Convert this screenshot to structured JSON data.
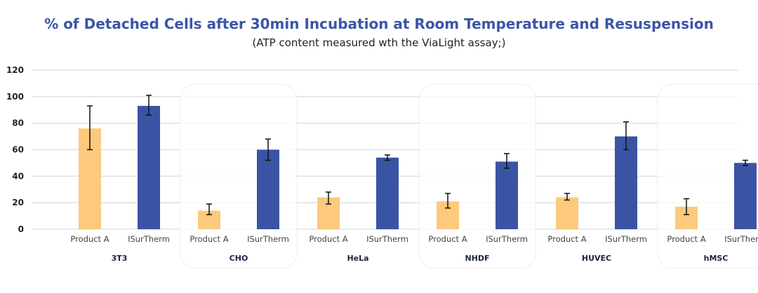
{
  "chart_data": {
    "type": "bar",
    "title": "% of Detached Cells after 30min Incubation at Room Temperature and Resuspension",
    "subtitle": "(ATP content measured wth the ViaLight assay;)",
    "xlabel": "",
    "ylabel": "",
    "ylim": [
      0,
      120
    ],
    "yticks": [
      "0",
      "20",
      "40",
      "60",
      "80",
      "100",
      "120"
    ],
    "grid": true,
    "series_names": [
      "Product A",
      "ISurTherm"
    ],
    "colors": {
      "Product A": "#fdc97c",
      "ISurTherm": "#3a54a4"
    },
    "groups": [
      {
        "name": "3T3",
        "highlight": false,
        "values": [
          76,
          93
        ],
        "error_low": [
          60,
          86
        ],
        "error_high": [
          93,
          101
        ]
      },
      {
        "name": "CHO",
        "highlight": true,
        "values": [
          14,
          60
        ],
        "error_low": [
          11,
          52
        ],
        "error_high": [
          19,
          68
        ]
      },
      {
        "name": "HeLa",
        "highlight": false,
        "values": [
          24,
          54
        ],
        "error_low": [
          19,
          52
        ],
        "error_high": [
          28,
          56
        ]
      },
      {
        "name": "NHDF",
        "highlight": true,
        "values": [
          21,
          51
        ],
        "error_low": [
          16,
          46
        ],
        "error_high": [
          27,
          57
        ]
      },
      {
        "name": "HUVEC",
        "highlight": false,
        "values": [
          24,
          70
        ],
        "error_low": [
          22,
          60
        ],
        "error_high": [
          27,
          81
        ]
      },
      {
        "name": "hMSC",
        "highlight": true,
        "values": [
          17,
          50
        ],
        "error_low": [
          11,
          48
        ],
        "error_high": [
          23,
          52
        ]
      }
    ]
  }
}
